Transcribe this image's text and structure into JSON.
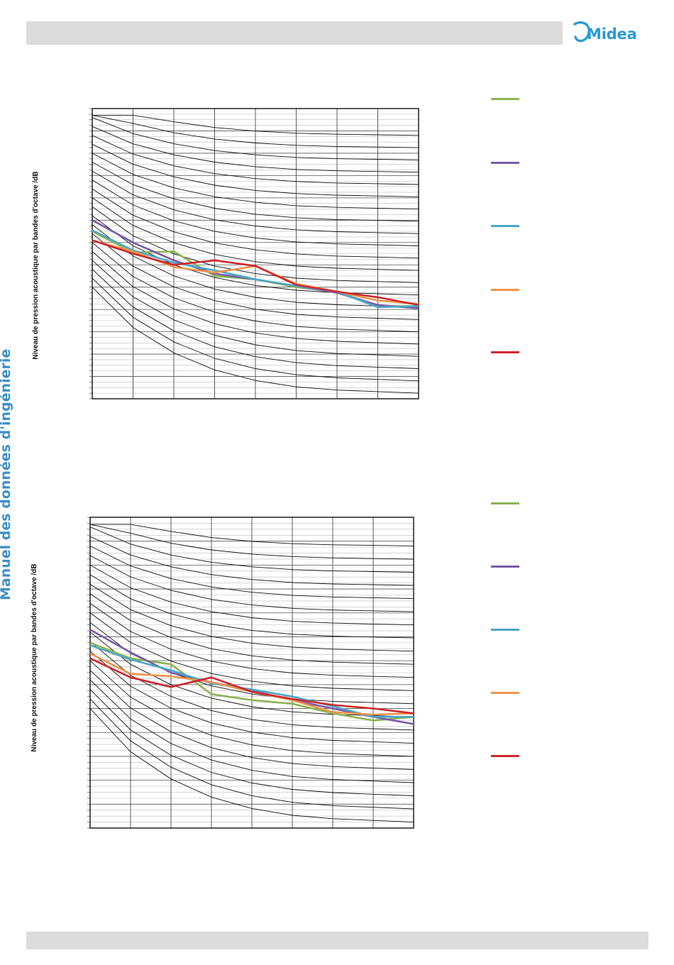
{
  "brand": {
    "logo_text": "Midea",
    "logo_color": "#2b9ad6"
  },
  "sidebar": {
    "title": "Manuel des données d'ingénierie"
  },
  "colors": {
    "header_bar": "#dcdcdc",
    "series": [
      "#8db451",
      "#7a5ba8",
      "#4ba8c8",
      "#f0944a",
      "#d0282e"
    ]
  },
  "chart_data": [
    {
      "type": "line",
      "title": "",
      "xlabel": "",
      "ylabel": "Niveau de pression acoustique par bandes d'octave /dB",
      "x": [
        1,
        2,
        3,
        4,
        5,
        6,
        7,
        8,
        9
      ],
      "ylim": [
        0,
        26
      ],
      "grid": true,
      "legend_position": "right",
      "series": [
        {
          "values": [
            15.0,
            13.1,
            13.2,
            11.0,
            10.7,
            10.0,
            9.6,
            8.3,
            8.3
          ]
        },
        {
          "values": [
            16.0,
            14.0,
            12.4,
            11.2,
            10.7,
            10.1,
            9.5,
            8.4,
            8.1
          ]
        },
        {
          "values": [
            15.1,
            13.3,
            12.2,
            11.5,
            10.7,
            10.1,
            9.6,
            8.2,
            8.3
          ]
        },
        {
          "values": [
            14.2,
            13.2,
            11.8,
            11.3,
            11.9,
            10.3,
            9.6,
            8.8,
            8.5
          ]
        },
        {
          "values": [
            14.2,
            13.0,
            12.0,
            12.4,
            11.9,
            10.2,
            9.6,
            9.1,
            8.4
          ]
        }
      ]
    },
    {
      "type": "line",
      "title": "",
      "xlabel": "",
      "ylabel": "Niveau de pression acoustique par bandes d'octave /dB",
      "x": [
        1,
        2,
        3,
        4,
        5,
        6,
        7,
        8,
        9
      ],
      "ylim": [
        0,
        26
      ],
      "grid": true,
      "legend_position": "right",
      "series": [
        {
          "values": [
            15.5,
            14.2,
            13.7,
            11.2,
            10.7,
            10.4,
            9.6,
            9.0,
            9.3
          ]
        },
        {
          "values": [
            16.6,
            14.7,
            13.0,
            12.2,
            11.5,
            10.7,
            10.0,
            9.3,
            8.7
          ]
        },
        {
          "values": [
            15.3,
            14.1,
            13.2,
            12.1,
            11.6,
            11.0,
            10.2,
            9.3,
            9.3
          ]
        },
        {
          "values": [
            14.6,
            12.9,
            12.7,
            12.2,
            11.4,
            10.7,
            9.7,
            9.5,
            9.6
          ]
        },
        {
          "values": [
            14.2,
            12.6,
            11.8,
            12.6,
            11.4,
            10.8,
            10.3,
            10.0,
            9.6
          ]
        }
      ]
    }
  ]
}
